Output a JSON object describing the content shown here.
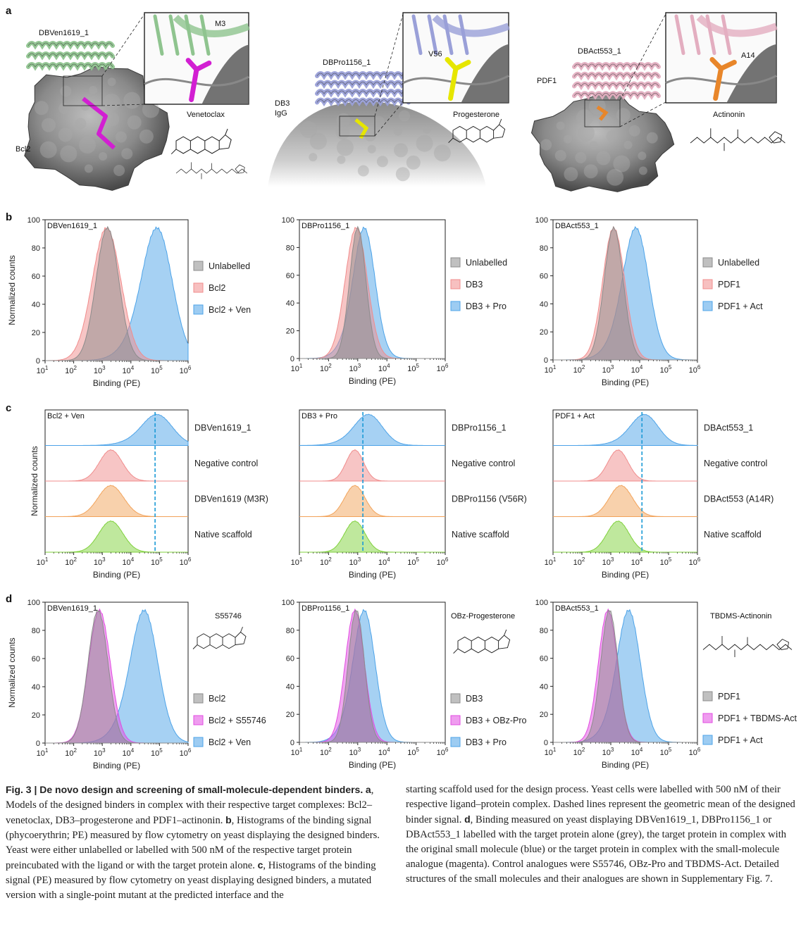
{
  "panel_labels": {
    "a": "a",
    "b": "b",
    "c": "c",
    "d": "d"
  },
  "structures": {
    "a": [
      {
        "binder": "DBVen1619_1",
        "target": "Bcl2",
        "inset_residue": "M3",
        "ligand": "Venetoclax",
        "binder_color": "#8fc48f",
        "ligand_color": "#d21fd2"
      },
      {
        "binder": "DBPro1156_1",
        "target_line1": "DB3",
        "target_line2": "IgG",
        "inset_residue": "V56",
        "ligand": "Progesterone",
        "binder_color": "#9aa0d8",
        "ligand_color": "#e6e600"
      },
      {
        "binder": "DBAct553_1",
        "target": "PDF1",
        "inset_residue": "A14",
        "ligand": "Actinonin",
        "binder_color": "#e3aec0",
        "ligand_color": "#e8862a"
      }
    ]
  },
  "axes": {
    "xlabel": "Binding (PE)",
    "ylabel": "Normalized counts",
    "x_ticks": [
      "1",
      "2",
      "3",
      "4",
      "5",
      "6"
    ],
    "x_tick_base": "10",
    "y_ticks": [
      "0",
      "20",
      "40",
      "60",
      "80",
      "100"
    ]
  },
  "colors": {
    "grey": "#8c8c8c",
    "red": "#f08c8c",
    "blue": "#4da3e8",
    "orange": "#f2a35a",
    "green": "#7fd13b",
    "magenta": "#e14be1"
  },
  "chart_data": [
    {
      "type": "area",
      "panel": "b",
      "title": "DBVen1619_1",
      "xscale": "log",
      "xlim": [
        10,
        1000000
      ],
      "ylim": [
        0,
        100
      ],
      "series": [
        {
          "name": "Unlabelled",
          "color": "grey",
          "mu": 3.18,
          "sd": 0.4
        },
        {
          "name": "Bcl2",
          "color": "red",
          "mu": 3.15,
          "sd": 0.5
        },
        {
          "name": "Bcl2 + Ven",
          "color": "blue",
          "mu": 4.95,
          "sd": 0.5,
          "skew": 1
        }
      ]
    },
    {
      "type": "area",
      "panel": "b",
      "title": "DBPro1156_1",
      "xscale": "log",
      "xlim": [
        10,
        1000000
      ],
      "ylim": [
        0,
        100
      ],
      "series": [
        {
          "name": "Unlabelled",
          "color": "grey",
          "mu": 3.0,
          "sd": 0.28
        },
        {
          "name": "DB3",
          "color": "red",
          "mu": 2.95,
          "sd": 0.38
        },
        {
          "name": "DB3 + Pro",
          "color": "blue",
          "mu": 3.25,
          "sd": 0.35,
          "skew": 1
        }
      ]
    },
    {
      "type": "area",
      "panel": "b",
      "title": "DBAct553_1",
      "xscale": "log",
      "xlim": [
        10,
        1000000
      ],
      "ylim": [
        0,
        100
      ],
      "series": [
        {
          "name": "Unlabelled",
          "color": "grey",
          "mu": 3.1,
          "sd": 0.33
        },
        {
          "name": "PDF1",
          "color": "red",
          "mu": 3.1,
          "sd": 0.38
        },
        {
          "name": "PDF1 + Act",
          "color": "blue",
          "mu": 3.9,
          "sd": 0.42,
          "skew": 1
        }
      ]
    },
    {
      "type": "area",
      "panel": "c",
      "title": "Bcl2 + Ven",
      "xscale": "log",
      "xlim": [
        10,
        1000000
      ],
      "geomean_x": 70000,
      "series": [
        {
          "name": "DBVen1619_1",
          "color": "blue",
          "mu": 4.95,
          "sd": 0.5,
          "skew": 1
        },
        {
          "name": "Negative control",
          "color": "red",
          "mu": 3.3,
          "sd": 0.4
        },
        {
          "name": "DBVen1619 (M3R)",
          "color": "orange",
          "mu": 3.3,
          "sd": 0.45
        },
        {
          "name": "Native scaffold",
          "color": "green",
          "mu": 3.3,
          "sd": 0.42
        }
      ]
    },
    {
      "type": "area",
      "panel": "c",
      "title": "DB3 + Pro",
      "xscale": "log",
      "xlim": [
        10,
        1000000
      ],
      "geomean_x": 1500,
      "series": [
        {
          "name": "DBPro1156_1",
          "color": "blue",
          "mu": 3.4,
          "sd": 0.45,
          "skew": 1
        },
        {
          "name": "Negative control",
          "color": "red",
          "mu": 2.9,
          "sd": 0.3
        },
        {
          "name": "DBPro1156 (V56R)",
          "color": "orange",
          "mu": 2.9,
          "sd": 0.35
        },
        {
          "name": "Native scaffold",
          "color": "green",
          "mu": 2.9,
          "sd": 0.35
        }
      ]
    },
    {
      "type": "area",
      "panel": "c",
      "title": "PDF1 + Act",
      "xscale": "log",
      "xlim": [
        10,
        1000000
      ],
      "geomean_x": 12000,
      "series": [
        {
          "name": "DBAct553_1",
          "color": "blue",
          "mu": 4.2,
          "sd": 0.45,
          "skew": 1
        },
        {
          "name": "Negative control",
          "color": "red",
          "mu": 3.25,
          "sd": 0.35
        },
        {
          "name": "DBAct553 (A14R)",
          "color": "orange",
          "mu": 3.35,
          "sd": 0.4
        },
        {
          "name": "Native scaffold",
          "color": "green",
          "mu": 3.25,
          "sd": 0.38
        }
      ]
    },
    {
      "type": "area",
      "panel": "d",
      "title": "DBVen1619_1",
      "xscale": "log",
      "xlim": [
        10,
        1000000
      ],
      "ylim": [
        0,
        100
      ],
      "structure_label": "S55746",
      "series": [
        {
          "name": "Bcl2",
          "color": "grey",
          "mu": 2.85,
          "sd": 0.35
        },
        {
          "name": "Bcl2 + S55746",
          "color": "magenta",
          "mu": 2.9,
          "sd": 0.38
        },
        {
          "name": "Bcl2 + Ven",
          "color": "blue",
          "mu": 4.5,
          "sd": 0.45,
          "skew": 1
        }
      ]
    },
    {
      "type": "area",
      "panel": "d",
      "title": "DBPro1156_1",
      "xscale": "log",
      "xlim": [
        10,
        1000000
      ],
      "ylim": [
        0,
        100
      ],
      "structure_label": "OBz-Progesterone",
      "series": [
        {
          "name": "DB3",
          "color": "grey",
          "mu": 2.95,
          "sd": 0.28
        },
        {
          "name": "DB3 + OBz-Pro",
          "color": "magenta",
          "mu": 2.9,
          "sd": 0.33
        },
        {
          "name": "DB3 + Pro",
          "color": "blue",
          "mu": 3.25,
          "sd": 0.35,
          "skew": 1
        }
      ]
    },
    {
      "type": "area",
      "panel": "d",
      "title": "DBAct553_1",
      "xscale": "log",
      "xlim": [
        10,
        1000000
      ],
      "ylim": [
        0,
        100
      ],
      "structure_label": "TBDMS-Actinonin",
      "series": [
        {
          "name": "PDF1",
          "color": "grey",
          "mu": 2.95,
          "sd": 0.3
        },
        {
          "name": "PDF1 + TBDMS-Act",
          "color": "magenta",
          "mu": 2.9,
          "sd": 0.33
        },
        {
          "name": "PDF1 + Act",
          "color": "blue",
          "mu": 3.65,
          "sd": 0.38,
          "skew": 1
        }
      ]
    }
  ],
  "caption": {
    "heading": "Fig. 3 | De novo design and screening of small-molecule-dependent binders.",
    "a_label": "a",
    "a_text": ", Models of the designed binders in complex with their respective target complexes: Bcl2–venetoclax, DB3–progesterone and PDF1–actinonin.",
    "b_label": "b",
    "b_text": ", Histograms of the binding signal (phycoerythrin; PE) measured by flow cytometry on yeast displaying the designed binders. Yeast were either unlabelled or labelled with 500 nM of the respective target protein preincubated with the ligand or with the target protein alone.",
    "c_label": "c",
    "c_text": ", Histograms of the binding signal (PE) measured by flow cytometry on yeast displaying designed binders, a mutated version with a single-point mutant at the predicted interface and the",
    "right_text1": "starting scaffold used for the design process. Yeast cells were labelled with 500 nM of their respective ligand–protein complex. Dashed lines represent the geometric mean of the designed binder signal.",
    "d_label": "d",
    "d_text": ", Binding measured on yeast displaying DBVen1619_1, DBPro1156_1 or DBAct553_1 labelled with the target protein alone (grey), the target protein in complex with the original small molecule (blue) or the target protein in complex with the small-molecule analogue (magenta). Control analogues were S55746, OBz-Pro and TBDMS-Act. Detailed structures of the small molecules and their analogues are shown in Supplementary Fig. 7."
  }
}
